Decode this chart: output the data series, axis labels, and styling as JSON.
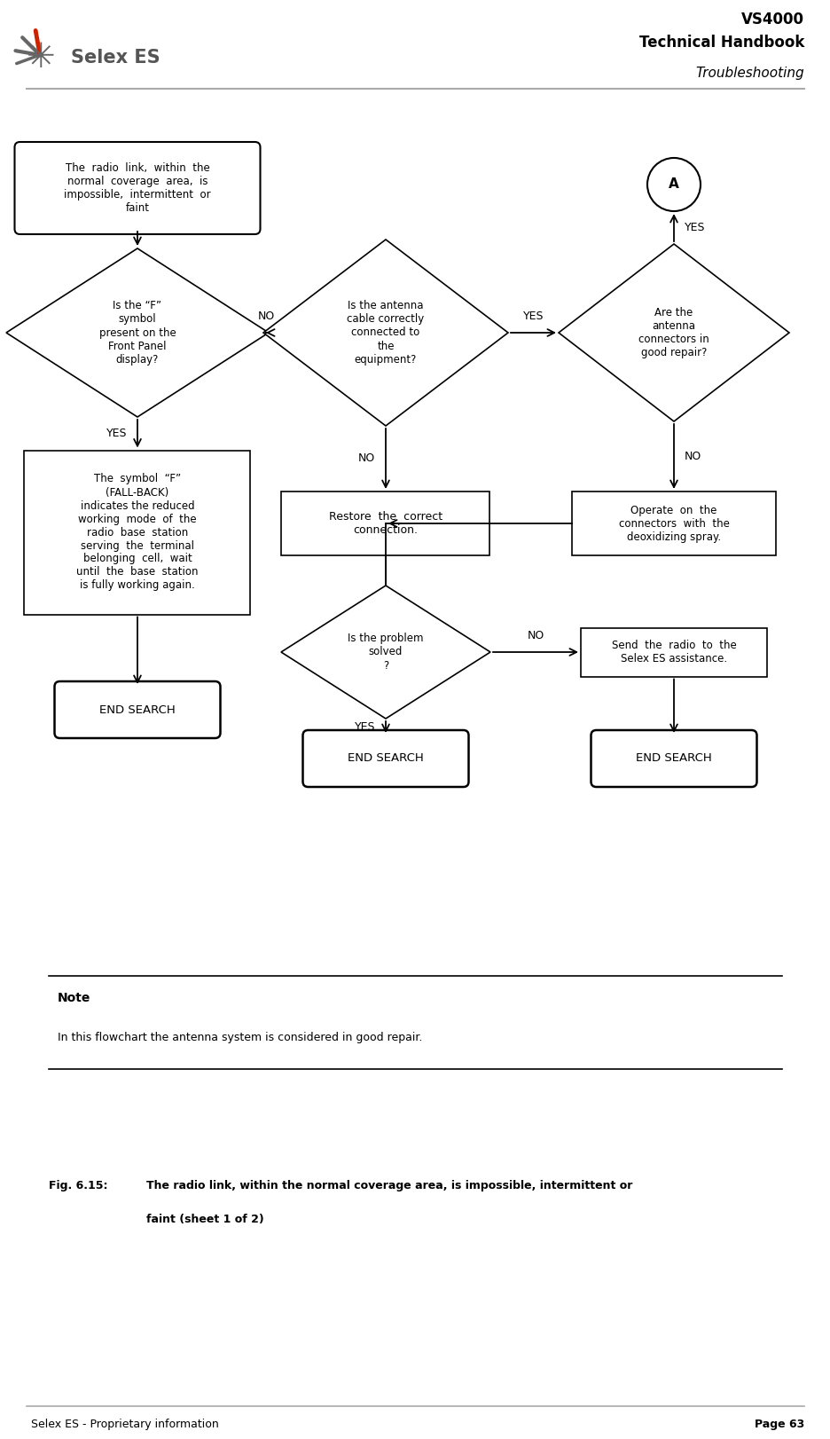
{
  "page_title_line1": "VS4000",
  "page_title_line2": "Technical Handbook",
  "page_subtitle": "Troubleshooting",
  "footer_left": "Selex ES - Proprietary information",
  "footer_right": "Page 63",
  "note_title": "Note",
  "note_text": "In this flowchart the antenna system is considered in good repair.",
  "fig_label": "Fig. 6.15:",
  "fig_caption_line1": "The radio link, within the normal coverage area, is impossible, intermittent or",
  "fig_caption_line2": "faint (sheet 1 of 2)",
  "start_box_text": "The  radio  link,  within  the\nnormal  coverage  area,  is\nimpossible,  intermittent  or\nfaint",
  "diamond1_text": "Is the “F”\nsymbol\npresent on the\nFront Panel\ndisplay?",
  "diamond2_text": "Is the antenna\ncable correctly\nconnected to\nthe\nequipment?",
  "diamond3_text": "Are the\nantenna\nconnectors in\ngood repair?",
  "box_fallback_text": "The  symbol  “F”\n(FALL-BACK)\nindicates the reduced\nworking  mode  of  the\nradio  base  station\nserving  the  terminal\nbelonging  cell,  wait\nuntil  the  base  station\nis fully working again.",
  "box_restore_text": "Restore  the  correct\nconnection.",
  "box_operate_text": "Operate  on  the\nconnectors  with  the\ndeoxidizing spray.",
  "diamond4_text": "Is the problem\nsolved\n?",
  "box_send_text": "Send  the  radio  to  the\nSelex ES assistance.",
  "end_search1": "END SEARCH",
  "end_search2": "END SEARCH",
  "end_search3": "END SEARCH",
  "connector_A": "A",
  "bg_color": "#ffffff",
  "box_color": "#ffffff",
  "box_edge_color": "#000000",
  "text_color": "#000000",
  "arrow_color": "#000000",
  "header_line_color": "#aaaaaa",
  "note_line_color": "#000000",
  "selex_text_color": "#555555",
  "logo_red": "#cc2200",
  "logo_gray": "#666666"
}
